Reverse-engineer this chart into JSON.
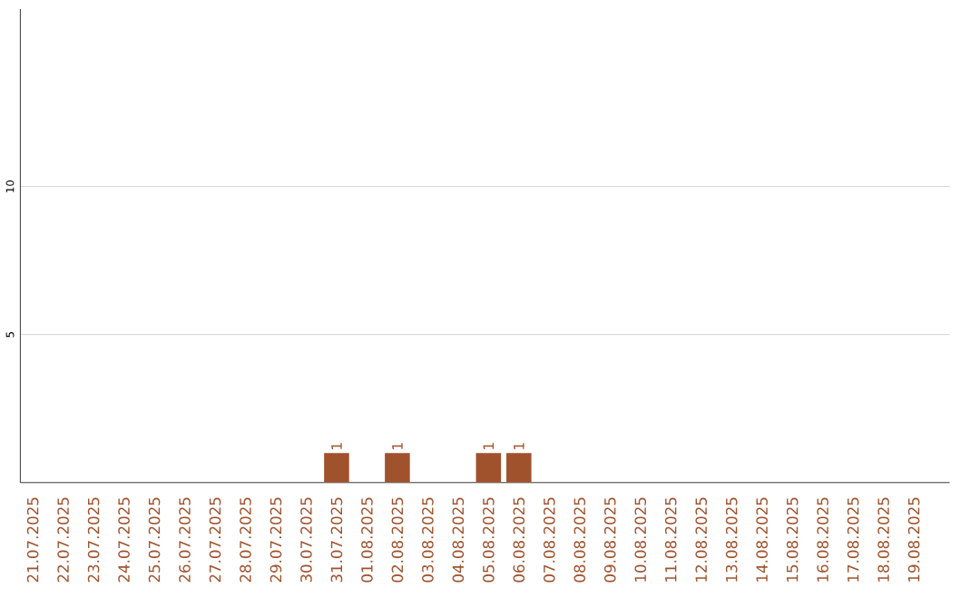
{
  "chart_data": {
    "type": "bar",
    "categories": [
      "21.07.2025",
      "22.07.2025",
      "23.07.2025",
      "24.07.2025",
      "25.07.2025",
      "26.07.2025",
      "27.07.2025",
      "28.07.2025",
      "29.07.2025",
      "30.07.2025",
      "31.07.2025",
      "01.08.2025",
      "02.08.2025",
      "03.08.2025",
      "04.08.2025",
      "05.08.2025",
      "06.08.2025",
      "07.08.2025",
      "08.08.2025",
      "09.08.2025",
      "10.08.2025",
      "11.08.2025",
      "12.08.2025",
      "13.08.2025",
      "14.08.2025",
      "15.08.2025",
      "16.08.2025",
      "17.08.2025",
      "18.08.2025",
      "19.08.2025"
    ],
    "values": [
      0,
      0,
      0,
      0,
      0,
      0,
      0,
      0,
      0,
      0,
      1,
      0,
      1,
      0,
      0,
      1,
      1,
      0,
      0,
      0,
      0,
      0,
      0,
      0,
      0,
      0,
      0,
      0,
      0,
      0
    ],
    "value_labels": [
      null,
      null,
      null,
      null,
      null,
      null,
      null,
      null,
      null,
      null,
      "1",
      null,
      "1",
      null,
      null,
      "1",
      "1",
      null,
      null,
      null,
      null,
      null,
      null,
      null,
      null,
      null,
      null,
      null,
      null,
      null
    ],
    "color": "#a0522d",
    "ylim": [
      0,
      16
    ],
    "yticks": [
      5,
      10
    ],
    "grid": "y"
  }
}
